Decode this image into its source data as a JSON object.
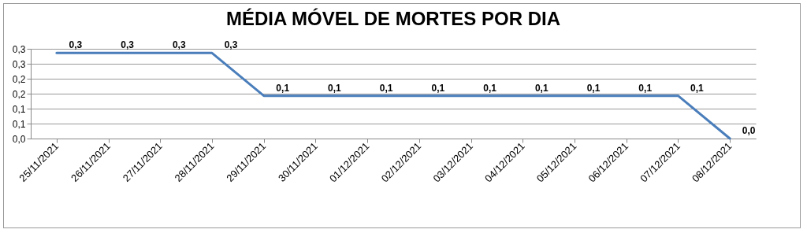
{
  "chart_data": {
    "type": "line",
    "title": "MÉDIA MÓVEL DE MORTES POR DIA",
    "categories": [
      "25/11/2021",
      "26/11/2021",
      "27/11/2021",
      "28/11/2021",
      "29/11/2021",
      "30/11/2021",
      "01/12/2021",
      "02/12/2021",
      "03/12/2021",
      "04/12/2021",
      "05/12/2021",
      "06/12/2021",
      "07/12/2021",
      "08/12/2021"
    ],
    "series": [
      {
        "color": "#4a7ebb",
        "values": [
          0.286,
          0.286,
          0.286,
          0.286,
          0.143,
          0.143,
          0.143,
          0.143,
          0.143,
          0.143,
          0.143,
          0.143,
          0.143,
          0
        ],
        "value_labels": [
          "0,3",
          "0,3",
          "0,3",
          "0,3",
          "0,1",
          "0,1",
          "0,1",
          "0,1",
          "0,1",
          "0,1",
          "0,1",
          "0,1",
          "0,1",
          "0,0"
        ]
      }
    ],
    "ylim": [
      0,
      0.3
    ],
    "yticks": [
      {
        "value": 0,
        "label": "0,0"
      },
      {
        "value": 0.05,
        "label": "0,1"
      },
      {
        "value": 0.1,
        "label": "0,1"
      },
      {
        "value": 0.15,
        "label": "0,2"
      },
      {
        "value": 0.2,
        "label": "0,2"
      },
      {
        "value": 0.25,
        "label": "0,3"
      },
      {
        "value": 0.3,
        "label": "0,3"
      }
    ],
    "grid": "y",
    "marker": "none",
    "line_style": "solid"
  }
}
